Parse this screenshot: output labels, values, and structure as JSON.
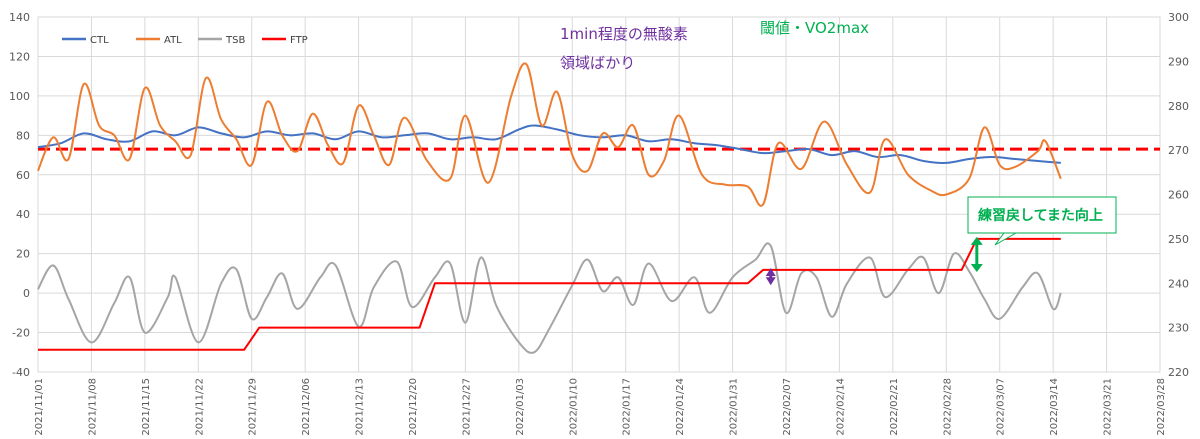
{
  "chart_data": {
    "type": "line",
    "y_left": {
      "min": -40,
      "max": 140,
      "ticks": [
        -40,
        -20,
        0,
        20,
        40,
        60,
        80,
        100,
        120,
        140
      ]
    },
    "y_right": {
      "min": 220,
      "max": 300,
      "ticks": [
        220,
        230,
        240,
        250,
        260,
        270,
        280,
        290,
        300
      ]
    },
    "x_start": "2021/11/01",
    "x_ticks": [
      "2021/11/01",
      "2021/11/08",
      "2021/11/15",
      "2021/11/22",
      "2021/11/29",
      "2021/12/06",
      "2021/12/13",
      "2021/12/20",
      "2021/12/27",
      "2022/01/03",
      "2022/01/10",
      "2022/01/17",
      "2022/01/24",
      "2022/01/31",
      "2022/02/07",
      "2022/02/14",
      "2022/02/21",
      "2022/02/28",
      "2022/03/07",
      "2022/03/14",
      "2022/03/21",
      "2022/03/28"
    ],
    "grid": true,
    "legend_position": "top-left",
    "reference_line": {
      "axis": "left",
      "value": 73,
      "color": "#ff0000",
      "style": "dashed"
    },
    "series": [
      {
        "name": "CTL",
        "axis": "left",
        "color": "#4472c4",
        "points": [
          [
            "2021/11/01",
            74
          ],
          [
            "2021/11/04",
            76
          ],
          [
            "2021/11/07",
            81
          ],
          [
            "2021/11/10",
            78
          ],
          [
            "2021/11/13",
            77
          ],
          [
            "2021/11/16",
            82
          ],
          [
            "2021/11/19",
            80
          ],
          [
            "2021/11/22",
            84
          ],
          [
            "2021/11/25",
            81
          ],
          [
            "2021/11/28",
            79
          ],
          [
            "2021/12/01",
            82
          ],
          [
            "2021/12/04",
            80
          ],
          [
            "2021/12/07",
            81
          ],
          [
            "2021/12/10",
            78
          ],
          [
            "2021/12/13",
            82
          ],
          [
            "2021/12/16",
            79
          ],
          [
            "2021/12/19",
            80
          ],
          [
            "2021/12/22",
            81
          ],
          [
            "2021/12/25",
            78
          ],
          [
            "2021/12/28",
            79
          ],
          [
            "2021/12/31",
            78
          ],
          [
            "2022/01/03",
            83
          ],
          [
            "2022/01/05",
            85
          ],
          [
            "2022/01/08",
            83
          ],
          [
            "2022/01/11",
            80
          ],
          [
            "2022/01/14",
            79
          ],
          [
            "2022/01/17",
            80
          ],
          [
            "2022/01/20",
            77
          ],
          [
            "2022/01/23",
            78
          ],
          [
            "2022/01/26",
            76
          ],
          [
            "2022/01/29",
            75
          ],
          [
            "2022/02/01",
            73
          ],
          [
            "2022/02/04",
            71
          ],
          [
            "2022/02/07",
            72
          ],
          [
            "2022/02/10",
            73
          ],
          [
            "2022/02/13",
            70
          ],
          [
            "2022/02/16",
            72
          ],
          [
            "2022/02/19",
            69
          ],
          [
            "2022/02/22",
            70
          ],
          [
            "2022/02/25",
            67
          ],
          [
            "2022/02/28",
            66
          ],
          [
            "2022/03/03",
            68
          ],
          [
            "2022/03/06",
            69
          ],
          [
            "2022/03/09",
            68
          ],
          [
            "2022/03/12",
            67
          ],
          [
            "2022/03/15",
            66
          ]
        ]
      },
      {
        "name": "ATL",
        "axis": "left",
        "color": "#ed7d31",
        "points": [
          [
            "2021/11/01",
            62
          ],
          [
            "2021/11/03",
            79
          ],
          [
            "2021/11/05",
            68
          ],
          [
            "2021/11/07",
            106
          ],
          [
            "2021/11/09",
            85
          ],
          [
            "2021/11/11",
            80
          ],
          [
            "2021/11/13",
            68
          ],
          [
            "2021/11/15",
            104
          ],
          [
            "2021/11/17",
            85
          ],
          [
            "2021/11/19",
            77
          ],
          [
            "2021/11/21",
            70
          ],
          [
            "2021/11/23",
            109
          ],
          [
            "2021/11/25",
            88
          ],
          [
            "2021/11/27",
            78
          ],
          [
            "2021/11/29",
            65
          ],
          [
            "2021/12/01",
            97
          ],
          [
            "2021/12/03",
            80
          ],
          [
            "2021/12/05",
            72
          ],
          [
            "2021/12/07",
            91
          ],
          [
            "2021/12/09",
            75
          ],
          [
            "2021/12/11",
            66
          ],
          [
            "2021/12/13",
            95
          ],
          [
            "2021/12/15",
            80
          ],
          [
            "2021/12/17",
            65
          ],
          [
            "2021/12/19",
            89
          ],
          [
            "2021/12/22",
            67
          ],
          [
            "2021/12/25",
            58
          ],
          [
            "2021/12/27",
            90
          ],
          [
            "2021/12/30",
            56
          ],
          [
            "2022/01/02",
            100
          ],
          [
            "2022/01/04",
            116
          ],
          [
            "2022/01/06",
            85
          ],
          [
            "2022/01/08",
            102
          ],
          [
            "2022/01/10",
            70
          ],
          [
            "2022/01/12",
            62
          ],
          [
            "2022/01/14",
            81
          ],
          [
            "2022/01/16",
            74
          ],
          [
            "2022/01/18",
            85
          ],
          [
            "2022/01/20",
            60
          ],
          [
            "2022/01/22",
            67
          ],
          [
            "2022/01/24",
            90
          ],
          [
            "2022/01/27",
            60
          ],
          [
            "2022/01/30",
            55
          ],
          [
            "2022/02/02",
            54
          ],
          [
            "2022/02/04",
            45
          ],
          [
            "2022/02/06",
            76
          ],
          [
            "2022/02/09",
            63
          ],
          [
            "2022/02/12",
            87
          ],
          [
            "2022/02/15",
            65
          ],
          [
            "2022/02/18",
            51
          ],
          [
            "2022/02/20",
            78
          ],
          [
            "2022/02/23",
            60
          ],
          [
            "2022/02/26",
            52
          ],
          [
            "2022/02/28",
            50
          ],
          [
            "2022/03/03",
            58
          ],
          [
            "2022/03/05",
            84
          ],
          [
            "2022/03/07",
            65
          ],
          [
            "2022/03/09",
            64
          ],
          [
            "2022/03/12",
            72
          ],
          [
            "2022/03/13",
            77
          ],
          [
            "2022/03/15",
            58
          ]
        ]
      },
      {
        "name": "TSB",
        "axis": "left",
        "color": "#a5a5a5",
        "points": [
          [
            "2021/11/01",
            2
          ],
          [
            "2021/11/03",
            14
          ],
          [
            "2021/11/05",
            -3
          ],
          [
            "2021/11/08",
            -25
          ],
          [
            "2021/11/11",
            -5
          ],
          [
            "2021/11/13",
            8
          ],
          [
            "2021/11/15",
            -20
          ],
          [
            "2021/11/18",
            -2
          ],
          [
            "2021/11/19",
            8
          ],
          [
            "2021/11/22",
            -25
          ],
          [
            "2021/11/25",
            5
          ],
          [
            "2021/11/27",
            12
          ],
          [
            "2021/11/29",
            -13
          ],
          [
            "2021/12/01",
            -2
          ],
          [
            "2021/12/03",
            10
          ],
          [
            "2021/12/05",
            -8
          ],
          [
            "2021/12/08",
            8
          ],
          [
            "2021/12/10",
            14
          ],
          [
            "2021/12/13",
            -17
          ],
          [
            "2021/12/15",
            3
          ],
          [
            "2021/12/18",
            16
          ],
          [
            "2021/12/20",
            -7
          ],
          [
            "2021/12/23",
            8
          ],
          [
            "2021/12/25",
            15
          ],
          [
            "2021/12/27",
            -15
          ],
          [
            "2021/12/29",
            18
          ],
          [
            "2021/12/31",
            -6
          ],
          [
            "2022/01/03",
            -25
          ],
          [
            "2022/01/05",
            -30
          ],
          [
            "2022/01/07",
            -18
          ],
          [
            "2022/01/10",
            4
          ],
          [
            "2022/01/12",
            17
          ],
          [
            "2022/01/14",
            1
          ],
          [
            "2022/01/16",
            8
          ],
          [
            "2022/01/18",
            -6
          ],
          [
            "2022/01/20",
            15
          ],
          [
            "2022/01/23",
            -4
          ],
          [
            "2022/01/26",
            8
          ],
          [
            "2022/01/28",
            -10
          ],
          [
            "2022/01/31",
            8
          ],
          [
            "2022/02/03",
            17
          ],
          [
            "2022/02/05",
            24
          ],
          [
            "2022/02/07",
            -10
          ],
          [
            "2022/02/09",
            10
          ],
          [
            "2022/02/11",
            8
          ],
          [
            "2022/02/13",
            -12
          ],
          [
            "2022/02/15",
            5
          ],
          [
            "2022/02/18",
            18
          ],
          [
            "2022/02/20",
            -2
          ],
          [
            "2022/02/23",
            12
          ],
          [
            "2022/02/25",
            18
          ],
          [
            "2022/02/27",
            0
          ],
          [
            "2022/03/01",
            20
          ],
          [
            "2022/03/03",
            11
          ],
          [
            "2022/03/05",
            -3
          ],
          [
            "2022/03/07",
            -13
          ],
          [
            "2022/03/10",
            3
          ],
          [
            "2022/03/12",
            10
          ],
          [
            "2022/03/14",
            -8
          ],
          [
            "2022/03/15",
            0
          ]
        ]
      },
      {
        "name": "FTP",
        "axis": "right",
        "color": "#ff0000",
        "points": [
          [
            "2021/11/01",
            225
          ],
          [
            "2021/11/28",
            225
          ],
          [
            "2021/11/30",
            230
          ],
          [
            "2021/12/21",
            230
          ],
          [
            "2021/12/23",
            240
          ],
          [
            "2022/02/02",
            240
          ],
          [
            "2022/02/04",
            243
          ],
          [
            "2022/03/02",
            243
          ],
          [
            "2022/03/04",
            250
          ],
          [
            "2022/03/15",
            250
          ]
        ]
      }
    ],
    "annotations": [
      {
        "text": "1min程度の無酸素",
        "color": "#7030a0"
      },
      {
        "text": "領域ばかり",
        "color": "#7030a0"
      },
      {
        "text": "閾値・VO2max",
        "color": "#00b050"
      },
      {
        "text": "練習戻してまた向上",
        "color": "#00b050"
      }
    ],
    "arrows": [
      {
        "date": "2022/02/05",
        "from": 240,
        "to": 243,
        "axis": "right",
        "color": "#7030a0"
      },
      {
        "date": "2022/03/04",
        "from": 243,
        "to": 250,
        "axis": "right",
        "color": "#00b050"
      }
    ]
  }
}
